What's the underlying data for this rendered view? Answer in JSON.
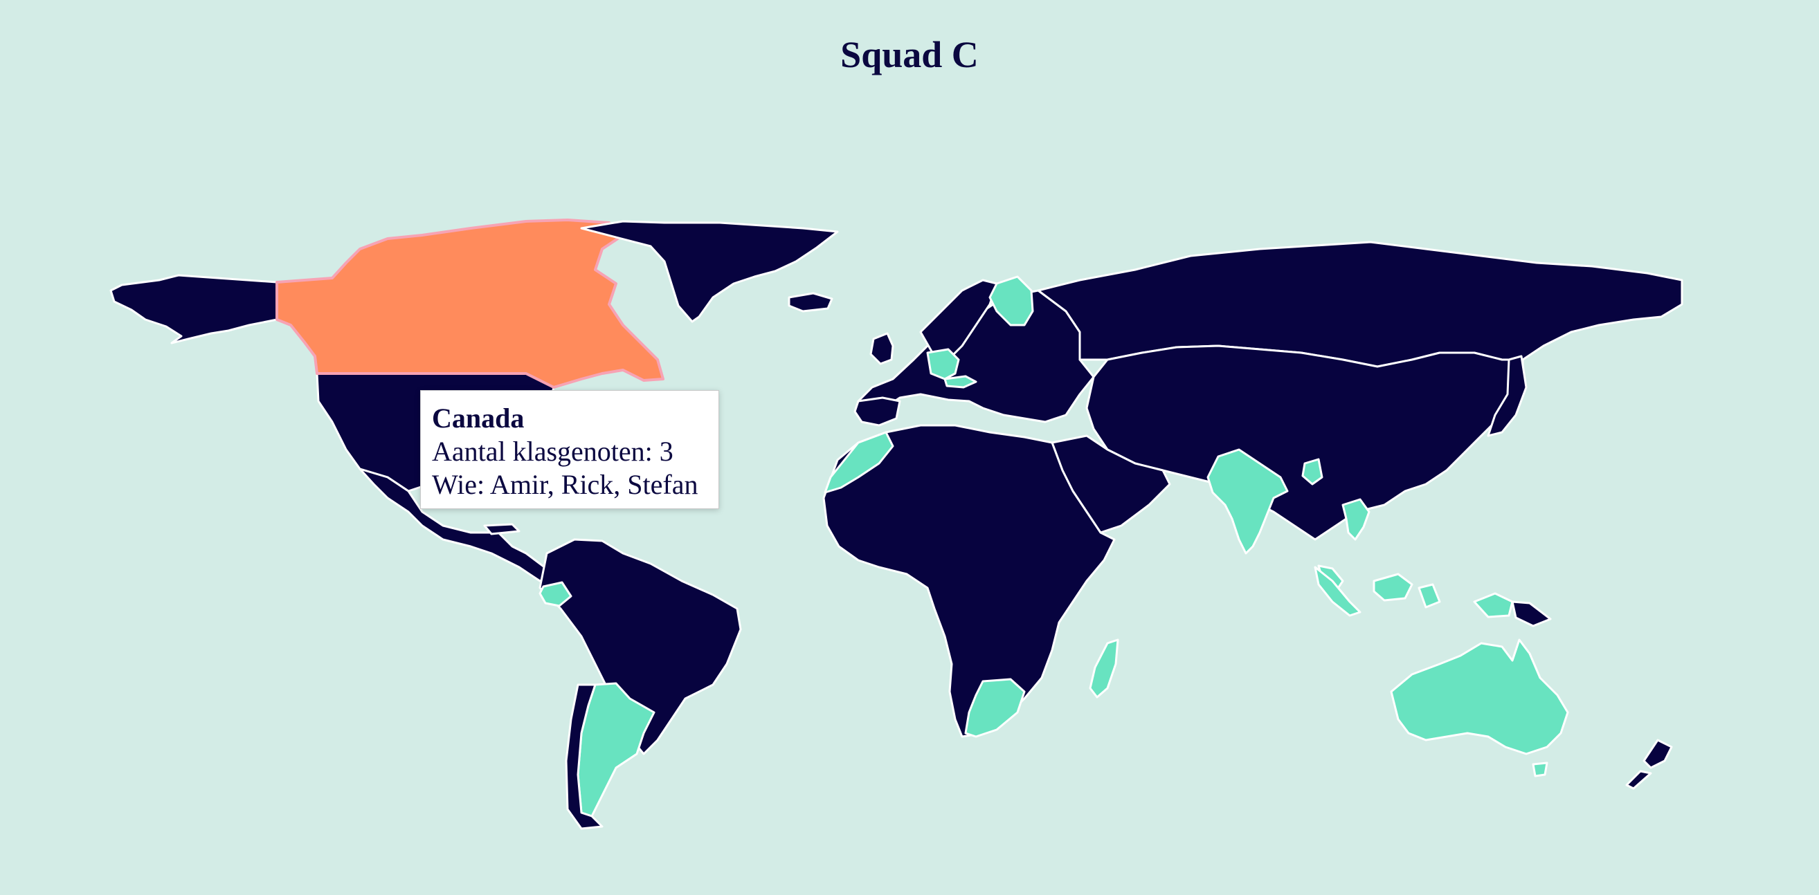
{
  "title": "Squad C",
  "colors": {
    "background": "#d3ece6",
    "no_classmates": "#07033f",
    "has_classmates": "#68e3c0",
    "hovered": "#ff8b5c",
    "border": "#ffffff"
  },
  "countries_with_classmates": [
    "Canada",
    "Finland",
    "Germany",
    "Austria",
    "Morocco",
    "India",
    "Bangladesh",
    "Thailand",
    "Indonesia",
    "Malaysia",
    "Ecuador",
    "Argentina",
    "South Africa",
    "Madagascar",
    "Australia"
  ],
  "hovered_country": "Canada",
  "tooltip": {
    "country": "Canada",
    "count_label": "Aantal klasgenoten: 3",
    "who_label": "Wie: Amir, Rick, Stefan"
  }
}
